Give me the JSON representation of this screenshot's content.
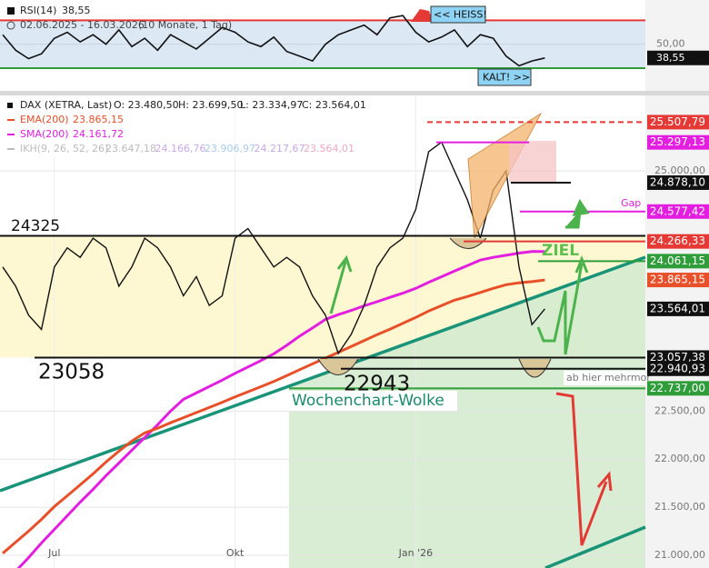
{
  "chart_data": [
    {
      "type": "line",
      "name": "RSI(14)",
      "current_value_label": "38,55",
      "date_range": "02.06.2025 - 16.03.2026",
      "period": "(10 Monate, 1 Tag)",
      "color": "#111111",
      "values": [
        58,
        45,
        38,
        42,
        55,
        60,
        52,
        58,
        50,
        62,
        48,
        55,
        45,
        58,
        52,
        46,
        55,
        64,
        60,
        52,
        48,
        56,
        44,
        40,
        36,
        50,
        58,
        62,
        66,
        58,
        72,
        74,
        60,
        52,
        56,
        62,
        48,
        58,
        55,
        40,
        32,
        36,
        38.55
      ],
      "ylim": [
        11,
        87
      ],
      "yticks": [
        {
          "value": 50,
          "label": "50,00"
        }
      ],
      "upper": {
        "value": 70,
        "color": "#e53935",
        "label": "<< HEISS!"
      },
      "lower": {
        "value": 30,
        "color": "#2e9d3a",
        "label": "KALT! >>"
      }
    },
    {
      "type": "line",
      "title": "DAX (XETRA, Last)",
      "ohlc": [
        "O: 23.480,50",
        "H: 23.699,50",
        "L: 23.334,97",
        "C: 23.564,01"
      ],
      "categories": [
        null,
        null,
        null,
        null,
        "Jul",
        null,
        null,
        null,
        null,
        null,
        null,
        null,
        null,
        null,
        null,
        null,
        null,
        null,
        "Okt",
        null,
        null,
        null,
        null,
        null,
        null,
        null,
        null,
        null,
        null,
        null,
        null,
        null,
        "Jan '26",
        null,
        null,
        null,
        null,
        null,
        null,
        null,
        null,
        null,
        null
      ],
      "series": [
        {
          "name": "DAX",
          "color": "#111111",
          "value_label": "23.564,01",
          "values": [
            24000,
            23800,
            23500,
            23350,
            24000,
            24200,
            24100,
            24300,
            24200,
            23800,
            24000,
            24300,
            24200,
            24000,
            23700,
            23900,
            23600,
            23700,
            24300,
            24400,
            24200,
            24000,
            24100,
            24000,
            23700,
            23500,
            23100,
            23300,
            23600,
            24000,
            24200,
            24300,
            24600,
            25200,
            25300,
            25000,
            24700,
            24300,
            24800,
            25000,
            24000,
            23400,
            23564.01
          ]
        },
        {
          "name": "EMA(200)",
          "color": "#e8502a",
          "value_label": "23.865,15",
          "values": [
            21020,
            21136,
            21250,
            21373,
            21506,
            21619,
            21733,
            21847,
            21970,
            22083,
            22188,
            22273,
            22322,
            22379,
            22432,
            22485,
            22538,
            22591,
            22648,
            22701,
            22754,
            22808,
            22869,
            22931,
            22992,
            23052,
            23112,
            23172,
            23234,
            23295,
            23352,
            23414,
            23475,
            23542,
            23598,
            23655,
            23693,
            23735,
            23778,
            23816,
            23835,
            23848,
            23865.15
          ]
        },
        {
          "name": "SMA(200)",
          "color": "#e31ee0",
          "value_label": "24.161,72",
          "values": [
            20691,
            20833,
            20975,
            21127,
            21269,
            21411,
            21553,
            21686,
            21828,
            21960,
            22093,
            22225,
            22358,
            22500,
            22623,
            22689,
            22756,
            22822,
            22893,
            22959,
            23026,
            23097,
            23185,
            23280,
            23365,
            23454,
            23504,
            23548,
            23596,
            23639,
            23684,
            23728,
            23778,
            23841,
            23899,
            23957,
            24015,
            24072,
            24100,
            24122,
            24145,
            24161,
            24161.72
          ]
        }
      ],
      "ikh": {
        "name": "IKH(9, 26, 52, 26)",
        "labels": [
          "23.647,18",
          "24.166,76",
          "23.906,97",
          "24.217,67",
          "23.564,01"
        ],
        "colors": [
          "#bbbbbb",
          "#c9a8e8",
          "#a8cce8",
          "#c9a8e8",
          "#f0a8c8"
        ]
      },
      "ylim": [
        20867,
        25786
      ],
      "yticks": [
        {
          "value": 25000,
          "label": "25.000,00"
        },
        {
          "value": 22500,
          "label": "22.500,00"
        },
        {
          "value": 22000,
          "label": "22.000,00"
        },
        {
          "value": 21500,
          "label": "21.500,00"
        },
        {
          "value": 21000,
          "label": "21.000,00"
        }
      ],
      "grid": true,
      "levels": [
        {
          "value": 25507.79,
          "tag": "25.507,79",
          "color": "#e53935",
          "dash": true
        },
        {
          "value": 25297.13,
          "tag": "25.297,13",
          "color": "#e31ee0"
        },
        {
          "value": 24878.1,
          "tag": "24.878,10",
          "color": "#111111"
        },
        {
          "value": 24577.42,
          "tag": "24.577,42",
          "color": "#e31ee0"
        },
        {
          "value": 24325,
          "color": "#111111"
        },
        {
          "value": 24266.33,
          "tag": "24.266,33",
          "color": "#e53935"
        },
        {
          "value": 24061.15,
          "tag": "24.061,15",
          "color": "#2e9d3a"
        },
        {
          "value": 23057.38,
          "tag": "23.057,38",
          "color": "#111111"
        },
        {
          "value": 22940.93,
          "tag": "22.940,93",
          "color": "#111111"
        },
        {
          "value": 22737,
          "tag": "22.737,00",
          "color": "#2e9d3a"
        }
      ],
      "annotations": [
        "24325",
        "23058",
        "22943",
        "Wochenchart-Wolke",
        "ZIEL",
        "Gap",
        "ab hier mehrmor"
      ]
    }
  ]
}
